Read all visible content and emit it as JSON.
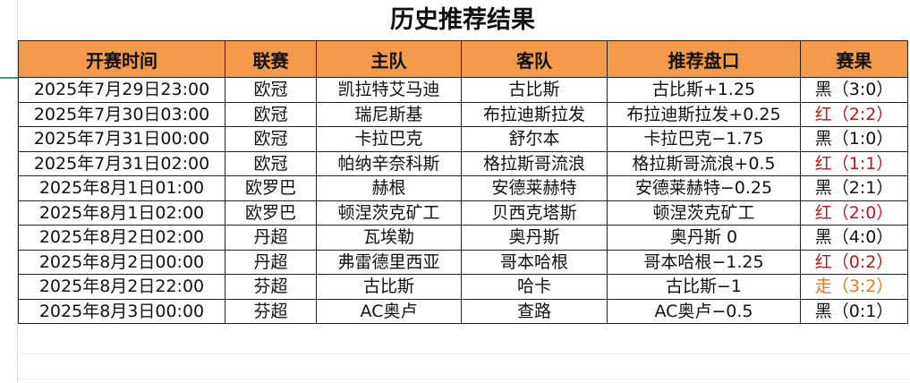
{
  "title": "历史推荐结果",
  "colors": {
    "header_bg": "#f39a4a",
    "red": "#c0161b",
    "orange": "#e57b20",
    "black": "#111111"
  },
  "columns": [
    "开赛时间",
    "联赛",
    "主队",
    "客队",
    "推荐盘口",
    "赛果"
  ],
  "rows": [
    {
      "time": "2025年7月29日23:00",
      "league": "欧冠",
      "home": "凯拉特艾马迪",
      "away": "古比斯",
      "pick": "古比斯+1.25",
      "result": "黑（3:0）",
      "result_color": "black"
    },
    {
      "time": "2025年7月30日03:00",
      "league": "欧冠",
      "home": "瑞尼斯基",
      "away": "布拉迪斯拉发",
      "pick": "布拉迪斯拉发+0.25",
      "result": "红（2:2）",
      "result_color": "red"
    },
    {
      "time": "2025年7月31日00:00",
      "league": "欧冠",
      "home": "卡拉巴克",
      "away": "舒尔本",
      "pick": "卡拉巴克−1.75",
      "result": "黑（1:0）",
      "result_color": "black"
    },
    {
      "time": "2025年7月31日02:00",
      "league": "欧冠",
      "home": "帕纳辛奈科斯",
      "away": "格拉斯哥流浪",
      "pick": "格拉斯哥流浪+0.5",
      "result": "红（1:1）",
      "result_color": "red"
    },
    {
      "time": "2025年8月1日01:00",
      "league": "欧罗巴",
      "home": "赫根",
      "away": "安德莱赫特",
      "pick": "安德莱赫特−0.25",
      "result": "黑（2:1）",
      "result_color": "black"
    },
    {
      "time": "2025年8月1日02:00",
      "league": "欧罗巴",
      "home": "顿涅茨克矿工",
      "away": "贝西克塔斯",
      "pick": "顿涅茨克矿工",
      "result": "红（2:0）",
      "result_color": "red"
    },
    {
      "time": "2025年8月2日02:00",
      "league": "丹超",
      "home": "瓦埃勒",
      "away": "奥丹斯",
      "pick": "奥丹斯 0",
      "result": "黑（4:0）",
      "result_color": "black"
    },
    {
      "time": "2025年8月2日00:00",
      "league": "丹超",
      "home": "弗雷德里西亚",
      "away": "哥本哈根",
      "pick": "哥本哈根−1.25",
      "result": "红（0:2）",
      "result_color": "red"
    },
    {
      "time": "2025年8月2日22:00",
      "league": "芬超",
      "home": "古比斯",
      "away": "哈卡",
      "pick": "古比斯−1",
      "result": "走（3:2）",
      "result_color": "orange"
    },
    {
      "time": "2025年8月3日00:00",
      "league": "芬超",
      "home": "AC奥卢",
      "away": "查路",
      "pick": "AC奥卢−0.5",
      "result": "黑（0:1）",
      "result_color": "black"
    }
  ]
}
